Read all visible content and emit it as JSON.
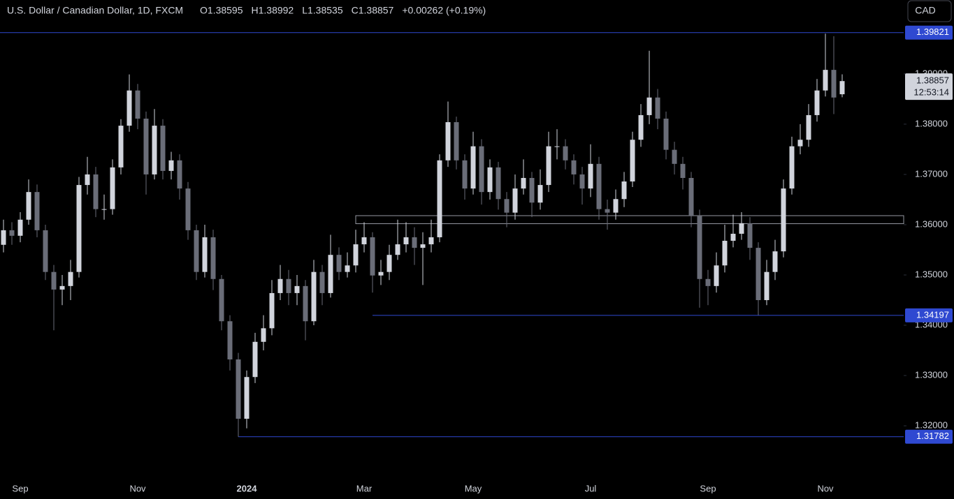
{
  "chart_data": {
    "type": "candlestick",
    "title": "U.S. Dollar / Canadian Dollar, 1D, FXCM",
    "ohlc_header": [
      "O1.38595",
      "H1.38992",
      "L1.38535",
      "C1.38857",
      "+0.00262 (+0.19%)"
    ],
    "currency": "CAD",
    "up_color": "#d1d4dc",
    "down_color": "#6a6d78",
    "line_color": "#2f49d1",
    "ylim": [
      1.3096,
      1.4047
    ],
    "yticks": [
      {
        "value": 1.32,
        "label": "1.32000"
      },
      {
        "value": 1.33,
        "label": "1.33000"
      },
      {
        "value": 1.34,
        "label": "1.34000"
      },
      {
        "value": 1.35,
        "label": "1.35000"
      },
      {
        "value": 1.36,
        "label": "1.36000"
      },
      {
        "value": 1.37,
        "label": "1.37000"
      },
      {
        "value": 1.38,
        "label": "1.38000"
      },
      {
        "value": 1.39,
        "label": "1.39000"
      }
    ],
    "hlines": [
      {
        "value": 1.39821,
        "label": "1.39821"
      },
      {
        "value": 1.34197,
        "label": "1.34197"
      },
      {
        "value": 1.31782,
        "label": "1.31782"
      }
    ],
    "zone": [
      1.3602,
      1.3618
    ],
    "last_price": {
      "value": 1.38857,
      "label": "1.38857"
    },
    "countdown": "12:53:14",
    "categories": [
      null,
      null,
      "Sep",
      null,
      null,
      null,
      null,
      null,
      null,
      null,
      null,
      null,
      null,
      null,
      null,
      null,
      "Nov",
      null,
      null,
      null,
      null,
      null,
      null,
      null,
      null,
      null,
      null,
      null,
      null,
      "2024",
      null,
      null,
      null,
      null,
      null,
      null,
      null,
      null,
      null,
      null,
      null,
      null,
      null,
      "Mar",
      null,
      null,
      null,
      null,
      null,
      null,
      null,
      null,
      null,
      null,
      null,
      null,
      "May",
      null,
      null,
      null,
      null,
      null,
      null,
      null,
      null,
      null,
      null,
      null,
      null,
      null,
      "Jul",
      null,
      null,
      null,
      null,
      null,
      null,
      null,
      null,
      null,
      null,
      null,
      null,
      null,
      "Sep",
      null,
      null,
      null,
      null,
      null,
      null,
      null,
      null,
      null,
      null,
      null,
      null,
      null,
      "Nov",
      null,
      null
    ],
    "open": [
      1.356,
      1.3589,
      1.3578,
      1.361,
      1.3665,
      1.3589,
      1.3506,
      1.3471,
      1.3478,
      1.3506,
      1.3679,
      1.37,
      1.3631,
      1.3631,
      1.3714,
      1.3797,
      1.3867,
      1.3811,
      1.37,
      1.3797,
      1.3707,
      1.3728,
      1.3672,
      1.3589,
      1.3506,
      1.3575,
      1.3492,
      1.3408,
      1.3332,
      1.3214,
      1.3297,
      1.3367,
      1.3394,
      1.3464,
      1.3492,
      1.3464,
      1.3478,
      1.3408,
      1.3506,
      1.3464,
      1.354,
      1.3506,
      1.3519,
      1.3561,
      1.3575,
      1.3499,
      1.3506,
      1.354,
      1.3561,
      1.3575,
      1.3554,
      1.3561,
      1.3575,
      1.3728,
      1.3804,
      1.3728,
      1.3672,
      1.3756,
      1.3665,
      1.3714,
      1.3651,
      1.3624,
      1.3672,
      1.3693,
      1.3644,
      1.3679,
      1.3756,
      1.3756,
      1.3728,
      1.37,
      1.3672,
      1.3721,
      1.3631,
      1.3624,
      1.3651,
      1.3686,
      1.3769,
      1.3818,
      1.3853,
      1.3811,
      1.3749,
      1.3721,
      1.3693,
      1.3617,
      1.3492,
      1.3478,
      1.3519,
      1.3568,
      1.3582,
      1.3603,
      1.3554,
      1.345,
      1.3506,
      1.3547,
      1.3672,
      1.3756,
      1.3769,
      1.3818,
      1.3867,
      1.3908,
      1.38595
    ],
    "high": [
      1.361,
      1.3605,
      1.3625,
      1.369,
      1.368,
      1.36,
      1.352,
      1.35,
      1.353,
      1.3695,
      1.3735,
      1.3715,
      1.366,
      1.373,
      1.381,
      1.3899,
      1.388,
      1.3825,
      1.383,
      1.381,
      1.3745,
      1.374,
      1.3685,
      1.36,
      1.36,
      1.359,
      1.35,
      1.342,
      1.3345,
      1.331,
      1.3385,
      1.342,
      1.349,
      1.352,
      1.351,
      1.35,
      1.349,
      1.353,
      1.352,
      1.358,
      1.3555,
      1.3545,
      1.359,
      1.3605,
      1.3585,
      1.353,
      1.356,
      1.361,
      1.3605,
      1.3595,
      1.3585,
      1.361,
      1.374,
      1.3845,
      1.3815,
      1.374,
      1.3785,
      1.377,
      1.373,
      1.3725,
      1.3665,
      1.37,
      1.373,
      1.3705,
      1.371,
      1.3785,
      1.379,
      1.377,
      1.374,
      1.3715,
      1.376,
      1.3735,
      1.365,
      1.367,
      1.3705,
      1.3785,
      1.384,
      1.3946,
      1.387,
      1.3825,
      1.3765,
      1.3735,
      1.3705,
      1.363,
      1.351,
      1.3545,
      1.36,
      1.362,
      1.3625,
      1.3615,
      1.3565,
      1.353,
      1.357,
      1.369,
      1.3775,
      1.38,
      1.384,
      1.389,
      1.398,
      1.3975,
      1.38992
    ],
    "low": [
      1.3545,
      1.356,
      1.3565,
      1.36,
      1.3575,
      1.349,
      1.339,
      1.344,
      1.345,
      1.3495,
      1.366,
      1.3615,
      1.361,
      1.362,
      1.37,
      1.3785,
      1.379,
      1.366,
      1.369,
      1.369,
      1.369,
      1.365,
      1.357,
      1.349,
      1.3495,
      1.347,
      1.339,
      1.331,
      1.3178,
      1.3195,
      1.3285,
      1.335,
      1.338,
      1.345,
      1.344,
      1.344,
      1.337,
      1.34,
      1.344,
      1.3455,
      1.349,
      1.3495,
      1.3505,
      1.3545,
      1.3465,
      1.348,
      1.349,
      1.353,
      1.3545,
      1.352,
      1.348,
      1.3545,
      1.3565,
      1.3715,
      1.371,
      1.365,
      1.366,
      1.364,
      1.365,
      1.363,
      1.3595,
      1.361,
      1.366,
      1.3615,
      1.363,
      1.3665,
      1.373,
      1.371,
      1.368,
      1.364,
      1.3655,
      1.361,
      1.359,
      1.361,
      1.3635,
      1.3675,
      1.3755,
      1.38,
      1.379,
      1.373,
      1.37,
      1.367,
      1.3595,
      1.3435,
      1.344,
      1.3465,
      1.3505,
      1.3555,
      1.357,
      1.353,
      1.342,
      1.344,
      1.349,
      1.3535,
      1.366,
      1.374,
      1.3755,
      1.3805,
      1.3855,
      1.382,
      1.38535
    ],
    "close": [
      1.3589,
      1.3578,
      1.361,
      1.3665,
      1.3589,
      1.3506,
      1.3471,
      1.3478,
      1.3506,
      1.3679,
      1.37,
      1.3631,
      1.3631,
      1.3714,
      1.3797,
      1.3867,
      1.3811,
      1.37,
      1.3797,
      1.3707,
      1.3728,
      1.3672,
      1.3589,
      1.3506,
      1.3575,
      1.3492,
      1.3408,
      1.3332,
      1.3214,
      1.3297,
      1.3367,
      1.3394,
      1.3464,
      1.3492,
      1.3464,
      1.3478,
      1.3408,
      1.3506,
      1.3464,
      1.354,
      1.3506,
      1.3519,
      1.3561,
      1.3575,
      1.3499,
      1.3506,
      1.354,
      1.3561,
      1.3575,
      1.3554,
      1.3561,
      1.3575,
      1.3728,
      1.3804,
      1.3728,
      1.3672,
      1.3756,
      1.3665,
      1.3714,
      1.3651,
      1.3624,
      1.3672,
      1.3693,
      1.3644,
      1.3679,
      1.3756,
      1.3756,
      1.3728,
      1.37,
      1.3672,
      1.3721,
      1.3631,
      1.3624,
      1.3651,
      1.3686,
      1.3769,
      1.3818,
      1.3853,
      1.3811,
      1.3749,
      1.3721,
      1.3693,
      1.3617,
      1.3492,
      1.3478,
      1.3519,
      1.3568,
      1.3582,
      1.3603,
      1.3554,
      1.345,
      1.3506,
      1.3547,
      1.3672,
      1.3756,
      1.3769,
      1.3818,
      1.3867,
      1.3908,
      1.3853,
      1.38857
    ]
  }
}
